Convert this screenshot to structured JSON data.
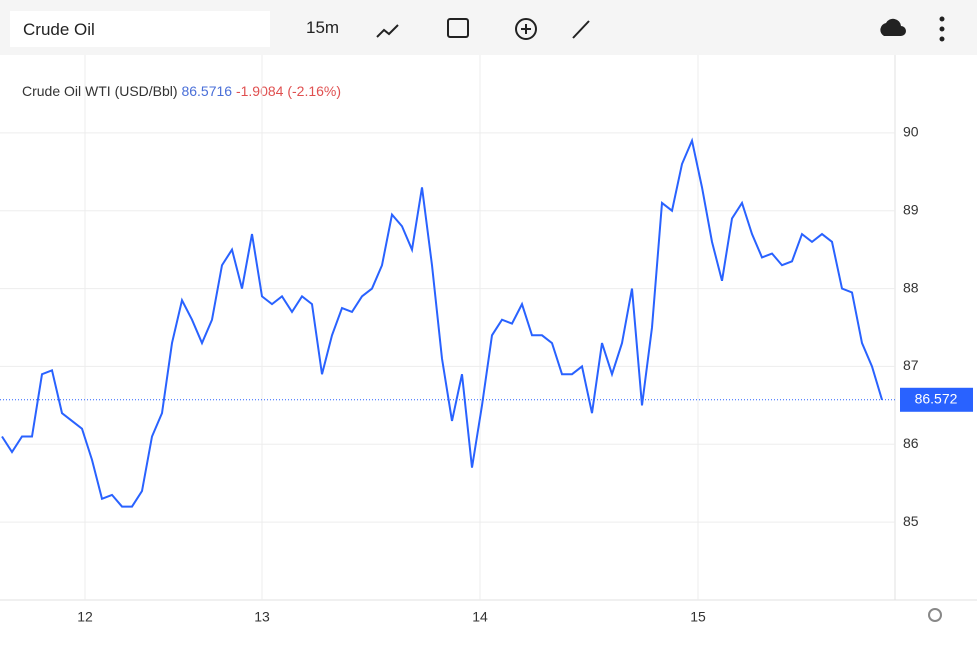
{
  "toolbar": {
    "search": "Crude Oil",
    "interval": "15m"
  },
  "chart_data": {
    "type": "line",
    "title": "Crude Oil WTI (USD/Bbl)",
    "price": "86.5716",
    "change": "-1.9084 (-2.16%)",
    "series": [
      {
        "name": "Crude Oil WTI",
        "color": "#2962ff",
        "values": [
          86.1,
          85.9,
          86.1,
          86.1,
          86.9,
          86.95,
          86.4,
          86.3,
          86.2,
          85.8,
          85.3,
          85.35,
          85.2,
          85.2,
          85.4,
          86.1,
          86.4,
          87.3,
          87.85,
          87.6,
          87.3,
          87.6,
          88.3,
          88.5,
          88.0,
          88.7,
          87.9,
          87.8,
          87.9,
          87.7,
          87.9,
          87.8,
          86.9,
          87.4,
          87.75,
          87.7,
          87.9,
          88.0,
          88.3,
          88.95,
          88.8,
          88.5,
          89.3,
          88.3,
          87.1,
          86.3,
          86.9,
          85.7,
          86.5,
          87.4,
          87.6,
          87.55,
          87.8,
          87.4,
          87.4,
          87.3,
          86.9,
          86.9,
          87.0,
          86.4,
          87.3,
          86.9,
          87.3,
          88.0,
          86.5,
          87.5,
          89.1,
          89.0,
          89.6,
          89.9,
          89.3,
          88.6,
          88.1,
          88.9,
          89.1,
          88.7,
          88.4,
          88.45,
          88.3,
          88.35,
          88.7,
          88.6,
          88.7,
          88.6,
          88.0,
          87.95,
          87.3,
          87.0,
          86.5716
        ]
      }
    ],
    "last_price": {
      "value": 86.5716,
      "label": "86.572"
    },
    "xlim": [
      -0.2,
      89.3
    ],
    "xticks": [
      {
        "value": 8.3,
        "label": "12"
      },
      {
        "value": 26,
        "label": "13"
      },
      {
        "value": 47.8,
        "label": "14"
      },
      {
        "value": 69.6,
        "label": "15"
      }
    ],
    "ylim": [
      84,
      91
    ],
    "yticks": [
      85,
      86,
      87,
      88,
      89,
      90
    ],
    "grid": true
  }
}
